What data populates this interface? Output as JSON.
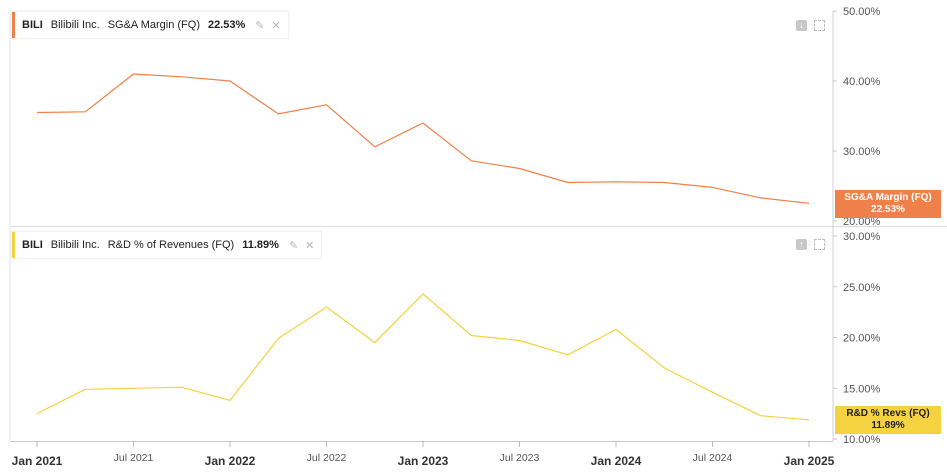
{
  "panels": [
    {
      "ticker": "BILI",
      "company": "Bilibili Inc.",
      "metric": "SG&A Margin (FQ)",
      "value_label": "22.53%",
      "flag_line1": "SG&A Margin (FQ)",
      "flag_line2": "22.53%",
      "color": "#f0804a",
      "icons": [
        "palette-icon",
        "close-icon",
        "download-icon",
        "expand-icon"
      ]
    },
    {
      "ticker": "BILI",
      "company": "Bilibili Inc.",
      "metric": "R&D % of Revenues (FQ)",
      "value_label": "11.89%",
      "flag_line1": "R&D % Revs (FQ)",
      "flag_line2": "11.89%",
      "color": "#f5d23f",
      "icons": [
        "palette-icon",
        "close-icon",
        "upload-icon",
        "expand-icon"
      ]
    }
  ],
  "chart_data": [
    {
      "type": "line",
      "name": "SG&A Margin (FQ)",
      "ylim": [
        20,
        50
      ],
      "yticks": [
        "20.00%",
        "30.00%",
        "40.00%",
        "50.00%"
      ],
      "x": [
        "2021-01",
        "2021-04",
        "2021-07",
        "2021-10",
        "2022-01",
        "2022-04",
        "2022-07",
        "2022-10",
        "2023-01",
        "2023-04",
        "2023-07",
        "2023-10",
        "2024-01",
        "2024-04",
        "2024-07",
        "2024-10",
        "2025-01"
      ],
      "values": [
        35.5,
        35.6,
        41.0,
        40.6,
        40.0,
        35.3,
        36.6,
        30.6,
        34.0,
        28.6,
        27.5,
        25.5,
        25.6,
        25.5,
        24.8,
        23.3,
        22.53
      ],
      "color": "#f0804a"
    },
    {
      "type": "line",
      "name": "R&D % of Revenues (FQ)",
      "ylim": [
        10,
        30
      ],
      "yticks": [
        "10.00%",
        "15.00%",
        "20.00%",
        "25.00%",
        "30.00%"
      ],
      "x": [
        "2021-01",
        "2021-04",
        "2021-07",
        "2021-10",
        "2022-01",
        "2022-04",
        "2022-07",
        "2022-10",
        "2023-01",
        "2023-04",
        "2023-07",
        "2023-10",
        "2024-01",
        "2024-04",
        "2024-07",
        "2024-10",
        "2025-01"
      ],
      "values": [
        12.5,
        14.9,
        15.0,
        15.1,
        13.8,
        19.9,
        23.0,
        19.5,
        24.3,
        20.2,
        19.7,
        18.3,
        20.8,
        17.0,
        14.6,
        12.3,
        11.89
      ],
      "color": "#f5d23f"
    }
  ],
  "xaxis": {
    "ticks": [
      {
        "date": "2021-01",
        "label": "Jan 2021",
        "major": true
      },
      {
        "date": "2021-07",
        "label": "Jul 2021",
        "major": false
      },
      {
        "date": "2022-01",
        "label": "Jan 2022",
        "major": true
      },
      {
        "date": "2022-07",
        "label": "Jul 2022",
        "major": false
      },
      {
        "date": "2023-01",
        "label": "Jan 2023",
        "major": true
      },
      {
        "date": "2023-07",
        "label": "Jul 2023",
        "major": false
      },
      {
        "date": "2024-01",
        "label": "Jan 2024",
        "major": true
      },
      {
        "date": "2024-07",
        "label": "Jul 2024",
        "major": false
      },
      {
        "date": "2025-01",
        "label": "Jan 2025",
        "major": true
      }
    ]
  }
}
